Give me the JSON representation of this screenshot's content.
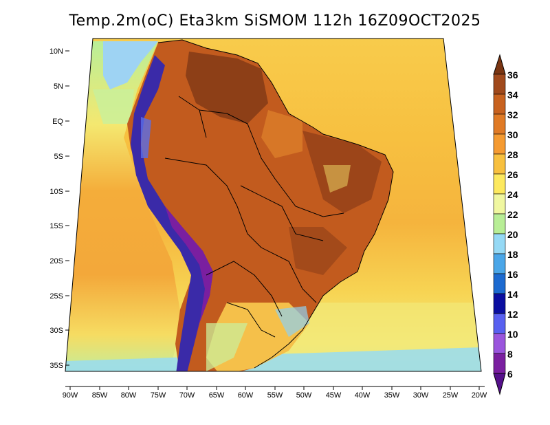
{
  "title": "Temp.2m(oC) Eta3km SiSMOM 112h 16Z09OCT2025",
  "lat_labels": [
    "10N",
    "5N",
    "EQ",
    "5S",
    "10S",
    "15S",
    "20S",
    "25S",
    "30S",
    "35S"
  ],
  "lon_labels": [
    "90W",
    "85W",
    "80W",
    "75W",
    "70W",
    "65W",
    "60W",
    "55W",
    "50W",
    "45W",
    "40W",
    "35W",
    "30W",
    "25W",
    "20W"
  ],
  "colorbar": {
    "labels": [
      "36",
      "34",
      "32",
      "30",
      "28",
      "26",
      "24",
      "22",
      "20",
      "18",
      "16",
      "14",
      "12",
      "10",
      "8",
      "6"
    ],
    "colors": [
      "#7a3512",
      "#a0491c",
      "#c8621f",
      "#e07a25",
      "#f59a30",
      "#f8c03e",
      "#fde95e",
      "#f0f7a0",
      "#b8ee96",
      "#95d9f5",
      "#4aa6e8",
      "#1c6ad0",
      "#0a0ea0",
      "#5860f0",
      "#9a55dd",
      "#7a1fa0",
      "#55108a"
    ]
  },
  "colors": {
    "ocean_north": "#f7c545",
    "ocean_mid": "#f5a83a",
    "ocean_south": "#f9e46a",
    "ocean_cool": "#bff0a0",
    "land_hot": "#c25b1e",
    "land_very_hot": "#8d3f17",
    "land_warm": "#e48a2d",
    "andes_cold": "#3a2aa8",
    "andes_mid": "#5a6ee8",
    "caribbean": "#9ed3f3"
  }
}
